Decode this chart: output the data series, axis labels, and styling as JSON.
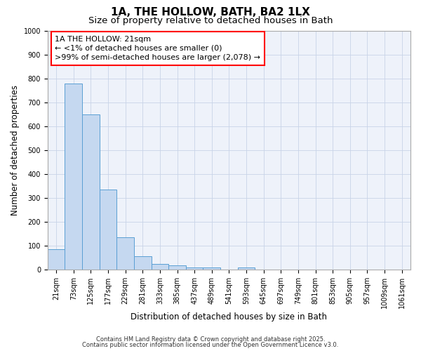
{
  "title": "1A, THE HOLLOW, BATH, BA2 1LX",
  "subtitle": "Size of property relative to detached houses in Bath",
  "xlabel": "Distribution of detached houses by size in Bath",
  "ylabel": "Number of detached properties",
  "categories": [
    "21sqm",
    "73sqm",
    "125sqm",
    "177sqm",
    "229sqm",
    "281sqm",
    "333sqm",
    "385sqm",
    "437sqm",
    "489sqm",
    "541sqm",
    "593sqm",
    "645sqm",
    "697sqm",
    "749sqm",
    "801sqm",
    "853sqm",
    "905sqm",
    "957sqm",
    "1009sqm",
    "1061sqm"
  ],
  "bar_values": [
    85,
    780,
    650,
    335,
    135,
    57,
    22,
    18,
    10,
    10,
    0,
    10,
    0,
    0,
    0,
    0,
    0,
    0,
    0,
    0,
    0
  ],
  "bar_color": "#c5d8f0",
  "bar_edge_color": "#5a9fd4",
  "ylim": [
    0,
    1000
  ],
  "yticks": [
    0,
    100,
    200,
    300,
    400,
    500,
    600,
    700,
    800,
    900,
    1000
  ],
  "annotation_text": "1A THE HOLLOW: 21sqm\n← <1% of detached houses are smaller (0)\n>99% of semi-detached houses are larger (2,078) →",
  "bg_color": "#eef2fa",
  "grid_color": "#c8d4e8",
  "title_fontsize": 11,
  "subtitle_fontsize": 9.5,
  "tick_fontsize": 7,
  "xlabel_fontsize": 8.5,
  "ylabel_fontsize": 8.5,
  "footer_line1": "Contains HM Land Registry data © Crown copyright and database right 2025.",
  "footer_line2": "Contains public sector information licensed under the Open Government Licence v3.0."
}
